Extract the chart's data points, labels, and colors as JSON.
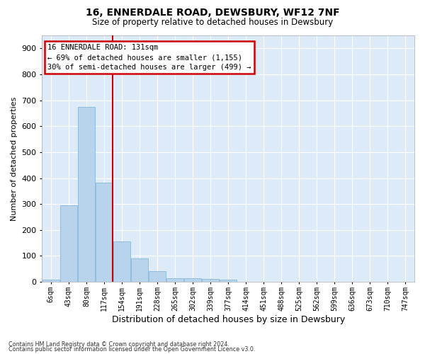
{
  "title": "16, ENNERDALE ROAD, DEWSBURY, WF12 7NF",
  "subtitle": "Size of property relative to detached houses in Dewsbury",
  "xlabel": "Distribution of detached houses by size in Dewsbury",
  "ylabel": "Number of detached properties",
  "bar_color": "#b8d4ed",
  "bar_edge_color": "#7aafd4",
  "line_color": "#cc0000",
  "background_color": "#ddeaf8",
  "grid_color": "#ffffff",
  "fig_bg_color": "#ffffff",
  "categories": [
    "6sqm",
    "43sqm",
    "80sqm",
    "117sqm",
    "154sqm",
    "191sqm",
    "228sqm",
    "265sqm",
    "302sqm",
    "339sqm",
    "377sqm",
    "414sqm",
    "451sqm",
    "488sqm",
    "525sqm",
    "562sqm",
    "599sqm",
    "636sqm",
    "673sqm",
    "710sqm",
    "747sqm"
  ],
  "bar_heights": [
    8,
    296,
    675,
    383,
    155,
    90,
    42,
    14,
    13,
    10,
    8,
    0,
    0,
    0,
    0,
    0,
    0,
    0,
    0,
    0,
    0
  ],
  "vline_x": 3.5,
  "annotation_line1": "16 ENNERDALE ROAD: 131sqm",
  "annotation_line2": "← 69% of detached houses are smaller (1,155)",
  "annotation_line3": "30% of semi-detached houses are larger (499) →",
  "ylim": [
    0,
    950
  ],
  "yticks": [
    0,
    100,
    200,
    300,
    400,
    500,
    600,
    700,
    800,
    900
  ],
  "footnote1": "Contains HM Land Registry data © Crown copyright and database right 2024.",
  "footnote2": "Contains public sector information licensed under the Open Government Licence v3.0."
}
